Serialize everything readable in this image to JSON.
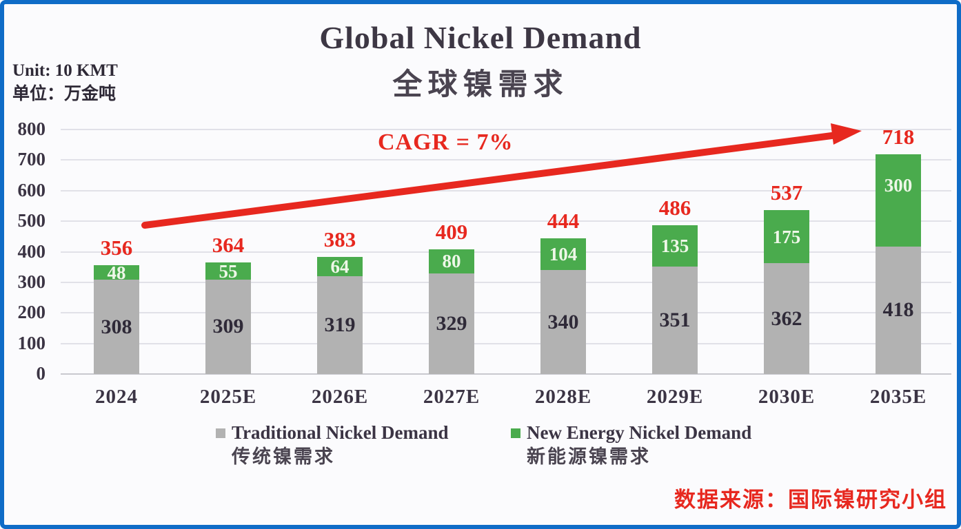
{
  "frame": {
    "border_color": "#0f6cc7",
    "background": "#fbfbfd"
  },
  "title": {
    "en": "Global Nickel Demand",
    "zh": "全球镍需求"
  },
  "unit": {
    "line1": "Unit: 10 KMT",
    "line2": "单位：万金吨"
  },
  "annotation": {
    "cagr_label": "CAGR = 7%"
  },
  "source": {
    "text": "数据来源：国际镍研究小组"
  },
  "legend": [
    {
      "name_en": "Traditional Nickel Demand",
      "name_zh": "传统镍需求",
      "color": "#b2b2b2"
    },
    {
      "name_en": "New Energy Nickel Demand",
      "name_zh": "新能源镍需求",
      "color": "#4aab4d"
    }
  ],
  "colors": {
    "red": "#e7281f",
    "green": "#4aab4d",
    "gray": "#b2b2b2",
    "dark_text": "#3b3444",
    "gridline": "#e1e1e8"
  },
  "chart_data": {
    "type": "bar",
    "stacked": true,
    "title": "Global Nickel Demand 全球镍需求",
    "unit": "10 KMT (万金吨)",
    "categories": [
      "2024",
      "2025E",
      "2026E",
      "2027E",
      "2028E",
      "2029E",
      "2030E",
      "2035E"
    ],
    "series": [
      {
        "name": "Traditional Nickel Demand",
        "name_zh": "传统镍需求",
        "color": "#b2b2b2",
        "values": [
          308,
          309,
          319,
          329,
          340,
          351,
          362,
          418
        ]
      },
      {
        "name": "New Energy Nickel Demand",
        "name_zh": "新能源镍需求",
        "color": "#4aab4d",
        "values": [
          48,
          55,
          64,
          80,
          104,
          135,
          175,
          300
        ]
      }
    ],
    "totals": [
      356,
      364,
      383,
      409,
      444,
      486,
      537,
      718
    ],
    "annotation": "CAGR = 7%",
    "xlabel": "",
    "ylabel": "",
    "ylim": [
      0,
      800
    ],
    "yticks": [
      0,
      100,
      200,
      300,
      400,
      500,
      600,
      700,
      800
    ],
    "grid": true,
    "legend_position": "bottom"
  }
}
